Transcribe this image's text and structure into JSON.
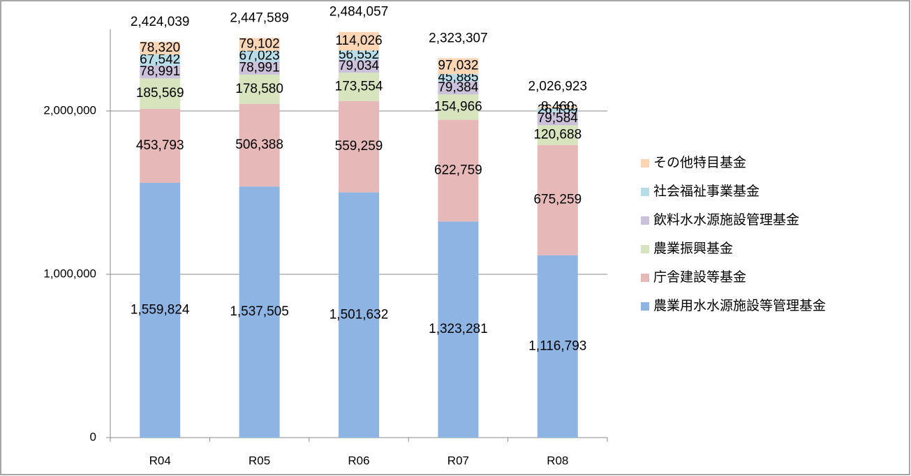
{
  "chart_data": {
    "type": "stacked_bar",
    "categories": [
      "R04",
      "R05",
      "R06",
      "R07",
      "R08"
    ],
    "series": [
      {
        "name": "農業用水水源施設等管理基金",
        "color": "#8eb4e3",
        "values": [
          1559824,
          1537505,
          1501632,
          1323281,
          1116793
        ],
        "value_labels": [
          "1,559,824",
          "1,537,505",
          "1,501,632",
          "1,323,281",
          "1,116,793"
        ]
      },
      {
        "name": "庁舎建設等基金",
        "color": "#e6b9b8",
        "values": [
          453793,
          506388,
          559259,
          622759,
          675259
        ],
        "value_labels": [
          "453,793",
          "506,388",
          "559,259",
          "622,759",
          "675,259"
        ]
      },
      {
        "name": "農業振興基金",
        "color": "#d7e4bd",
        "values": [
          185569,
          178580,
          173554,
          154966,
          120688
        ],
        "value_labels": [
          "185,569",
          "178,580",
          "173,554",
          "154,966",
          "120,688"
        ]
      },
      {
        "name": "飲料水水源施設管理基金",
        "color": "#ccc1da",
        "values": [
          78991,
          78991,
          79034,
          79384,
          79584
        ],
        "value_labels": [
          "78,991",
          "78,991",
          "79,034",
          "79,384",
          "79,584"
        ]
      },
      {
        "name": "社会福祉事業基金",
        "color": "#b7dee8",
        "values": [
          67542,
          67023,
          56552,
          45885,
          26139
        ],
        "value_labels": [
          "67,542",
          "67,023",
          "56,552",
          "45,885",
          "26,139"
        ]
      },
      {
        "name": "その他特目基金",
        "color": "#fcd5b5",
        "values": [
          78320,
          79102,
          114026,
          97032,
          8460
        ],
        "value_labels": [
          "78,320",
          "79,102",
          "114,026",
          "97,032",
          "8,460"
        ]
      }
    ],
    "totals": {
      "values": [
        2424039,
        2447589,
        2484057,
        2323307,
        2026923
      ],
      "value_labels": [
        "2,424,039",
        "2,447,589",
        "2,484,057",
        "2,323,307",
        "2,026,923"
      ]
    },
    "ylim": [
      0,
      2500000
    ],
    "yticks": [
      {
        "value": 0,
        "label": "0"
      },
      {
        "value": 1000000,
        "label": "1,000,000"
      },
      {
        "value": 2000000,
        "label": "2,000,000"
      }
    ],
    "grid": true,
    "legend": "right"
  }
}
